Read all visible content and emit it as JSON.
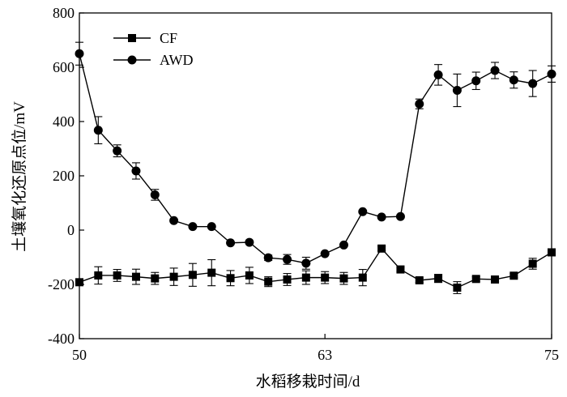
{
  "chart_data": {
    "type": "line",
    "xlabel": "水稻移栽时间/d",
    "ylabel": "土壤氧化还原点位/mV",
    "xlim": [
      50,
      75
    ],
    "ylim": [
      -400,
      800
    ],
    "x_ticks": [
      "50",
      "63",
      "75"
    ],
    "y_ticks": [
      "-400",
      "-200",
      "0",
      "200",
      "400",
      "600",
      "800"
    ],
    "legend_position": "top-left",
    "series": [
      {
        "name": "CF",
        "marker": "square",
        "x": [
          50,
          51,
          52,
          53,
          54,
          55,
          56,
          57,
          58,
          59,
          60,
          61,
          62,
          63,
          64,
          65,
          66,
          67,
          68,
          69,
          70,
          71,
          72,
          73,
          74,
          75
        ],
        "y": [
          -192,
          -167,
          -167,
          -172,
          -178,
          -172,
          -165,
          -157,
          -177,
          -167,
          -190,
          -182,
          -175,
          -175,
          -178,
          -175,
          -68,
          -145,
          -185,
          -178,
          -212,
          -180,
          -182,
          -168,
          -124,
          -82
        ],
        "err": [
          8,
          32,
          22,
          28,
          22,
          32,
          42,
          48,
          28,
          30,
          18,
          22,
          25,
          22,
          22,
          30,
          8,
          8,
          8,
          15,
          22,
          8,
          8,
          8,
          20,
          8
        ]
      },
      {
        "name": "AWD",
        "marker": "circle",
        "x": [
          50,
          51,
          52,
          53,
          54,
          55,
          56,
          57,
          58,
          59,
          60,
          61,
          62,
          63,
          64,
          65,
          66,
          67,
          68,
          69,
          70,
          71,
          72,
          73,
          74,
          75
        ],
        "y": [
          650,
          368,
          292,
          218,
          130,
          35,
          13,
          13,
          -47,
          -45,
          -102,
          -108,
          -122,
          -87,
          -55,
          68,
          48,
          50,
          465,
          572,
          515,
          550,
          588,
          553,
          540,
          575
        ],
        "err": [
          42,
          50,
          22,
          30,
          20,
          0,
          0,
          0,
          0,
          0,
          10,
          18,
          22,
          0,
          0,
          0,
          0,
          0,
          18,
          38,
          60,
          32,
          30,
          30,
          48,
          30
        ]
      }
    ]
  }
}
